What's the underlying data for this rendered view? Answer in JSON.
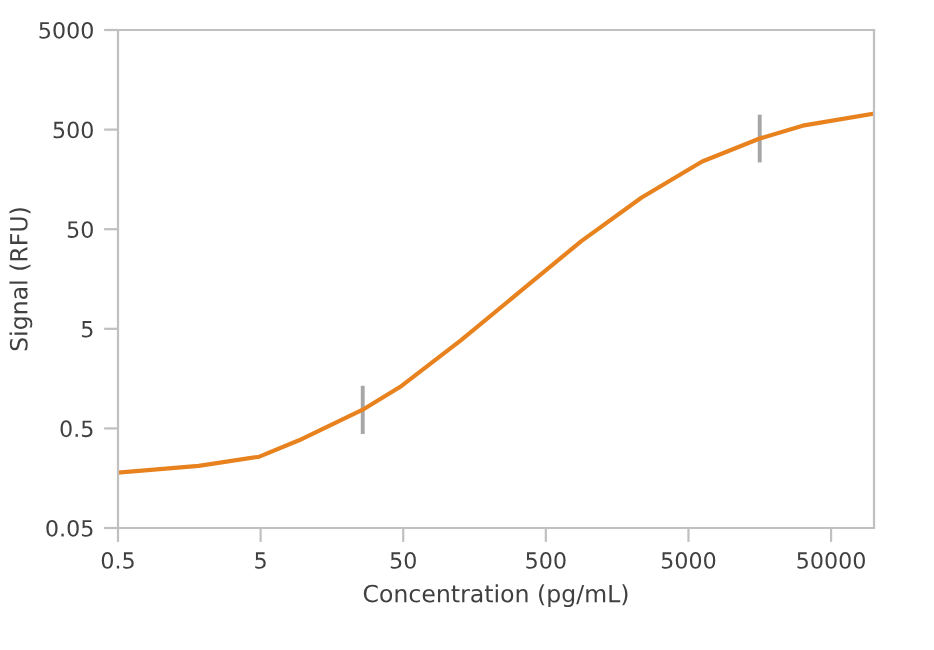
{
  "chart_data": {
    "type": "line",
    "xlabel": "Concentration (pg/mL)",
    "ylabel": "Signal (RFU)",
    "log": "xy",
    "xlim": [
      0.5,
      100000
    ],
    "xticks": [
      0.5,
      5,
      50,
      500,
      5000,
      50000
    ],
    "ylim": [
      0.05,
      5000
    ],
    "yticks": [
      0.05,
      0.5,
      5,
      50,
      500,
      5000
    ],
    "series": [
      {
        "color": "#e8821e",
        "x": [
          0.5,
          1.84,
          4.9,
          9.3,
          26,
          47.4,
          126,
          334,
          887,
          2350,
          6240,
          15800,
          31600,
          100000
        ],
        "values": [
          0.18,
          0.21,
          0.26,
          0.38,
          0.77,
          1.3,
          3.8,
          12,
          38,
          104,
          239,
          407,
          548,
          723
        ],
        "errors": [
          null,
          null,
          null,
          null,
          [
            0.46,
            1.28
          ],
          null,
          null,
          null,
          null,
          null,
          null,
          [
            245,
            675
          ],
          null,
          null
        ]
      }
    ]
  }
}
